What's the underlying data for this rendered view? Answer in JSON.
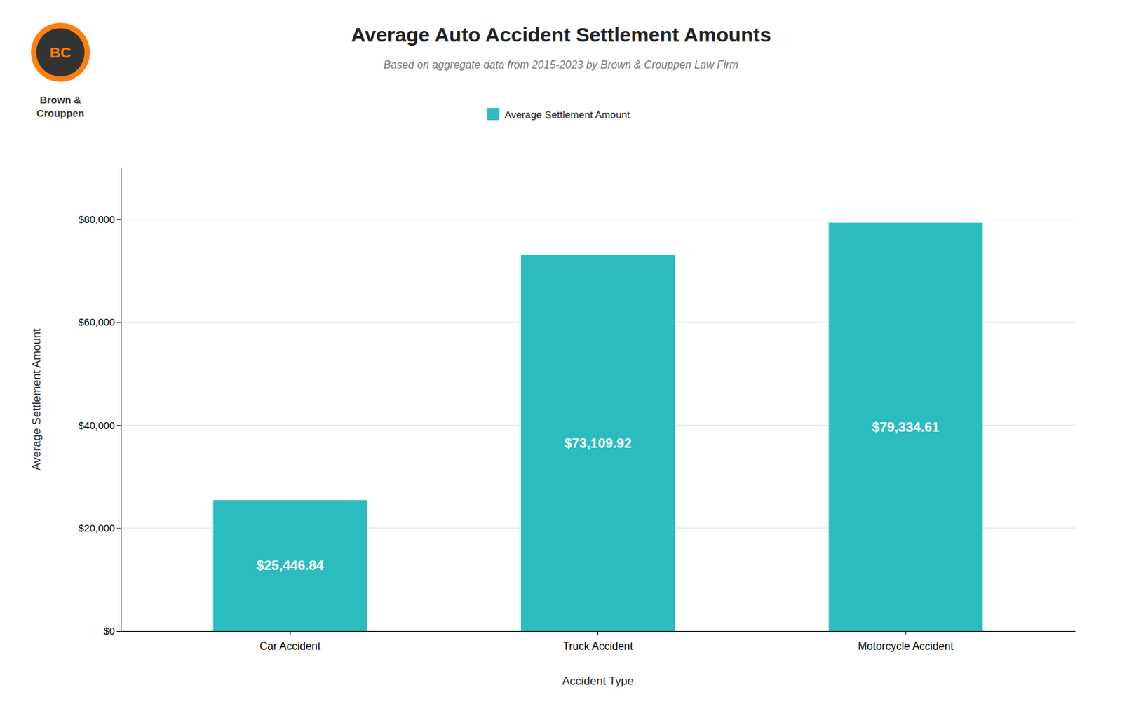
{
  "chart_data": {
    "type": "bar",
    "title": "Average Auto Accident Settlement Amounts",
    "subtitle": "Based on aggregate data from 2015-2023 by Brown & Crouppen Law Firm",
    "xlabel": "Accident Type",
    "ylabel": "Average Settlement Amount",
    "categories": [
      "Car Accident",
      "Truck Accident",
      "Motorcycle Accident"
    ],
    "series": [
      {
        "name": "Average Settlement Amount",
        "color": "#2bbcbf",
        "values": [
          25446.84,
          73109.92,
          79334.61
        ],
        "value_labels": [
          "$25,446.84",
          "$73,109.92",
          "$79,334.61"
        ]
      }
    ],
    "ylim": [
      0,
      90000
    ],
    "yticks": [
      {
        "value": 0,
        "label": "$0"
      },
      {
        "value": 20000,
        "label": "$20,000"
      },
      {
        "value": 40000,
        "label": "$40,000"
      },
      {
        "value": 60000,
        "label": "$60,000"
      },
      {
        "value": 80000,
        "label": "$80,000"
      }
    ],
    "grid": true,
    "legend": "top",
    "data_labels": true,
    "annotations": [
      "BC",
      "Brown &",
      "Crouppen"
    ]
  }
}
